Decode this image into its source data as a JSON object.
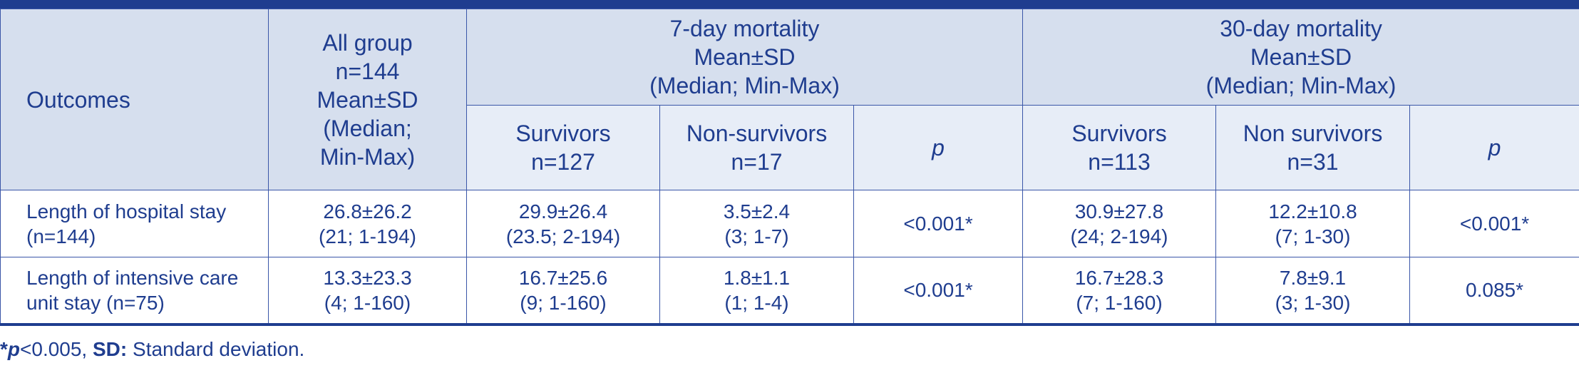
{
  "header": {
    "outcomes": "Outcomes",
    "all_group": [
      "All group",
      "n=144",
      "Mean±SD",
      "(Median;",
      "Min-Max)"
    ],
    "mortality7": [
      "7-day mortality",
      "Mean±SD",
      "(Median; Min-Max)"
    ],
    "mortality30": [
      "30-day mortality",
      "Mean±SD",
      "(Median; Min-Max)"
    ],
    "survivors7": [
      "Survivors",
      "n=127"
    ],
    "nonsurvivors7": [
      "Non-survivors",
      "n=17"
    ],
    "p7": "p",
    "survivors30": [
      "Survivors",
      "n=113"
    ],
    "nonsurvivors30": [
      "Non survivors",
      "n=31"
    ],
    "p30": "p"
  },
  "rows": [
    {
      "outcome": [
        "Length of hospital stay",
        "(n=144)"
      ],
      "all": [
        "26.8±26.2",
        "(21; 1-194)"
      ],
      "s7": [
        "29.9±26.4",
        "(23.5; 2-194)"
      ],
      "ns7": [
        "3.5±2.4",
        "(3; 1-7)"
      ],
      "p7": "<0.001*",
      "s30": [
        "30.9±27.8",
        "(24; 2-194)"
      ],
      "ns30": [
        "12.2±10.8",
        "(7; 1-30)"
      ],
      "p30": "<0.001*"
    },
    {
      "outcome": [
        "Length of intensive care",
        "unit stay (n=75)"
      ],
      "all": [
        "13.3±23.3",
        "(4; 1-160)"
      ],
      "s7": [
        "16.7±25.6",
        "(9; 1-160)"
      ],
      "ns7": [
        "1.8±1.1",
        "(1; 1-4)"
      ],
      "p7": "<0.001*",
      "s30": [
        "16.7±28.3",
        "(7; 1-160)"
      ],
      "ns30": [
        "7.8±9.1",
        "(3; 1-30)"
      ],
      "p30": "0.085*"
    }
  ],
  "footnote": {
    "star": "*",
    "p": "p",
    "threshold": "<0.005, ",
    "sd_label": "SD:",
    "sd_text": " Standard deviation."
  }
}
